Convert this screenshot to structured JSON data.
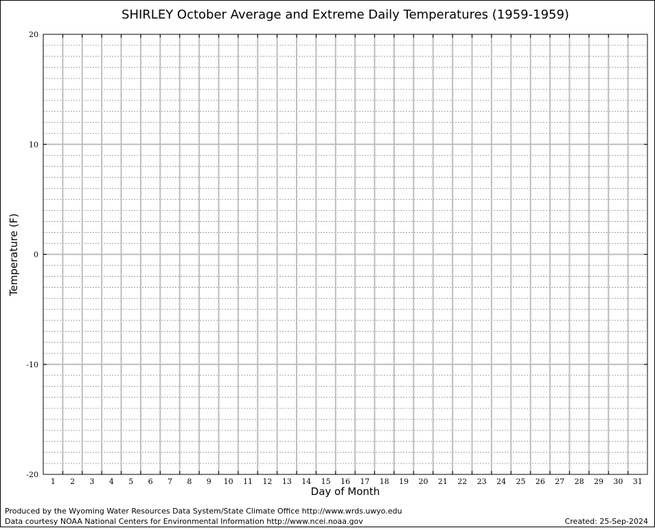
{
  "chart_data": {
    "type": "line",
    "title": "SHIRLEY October Average and Extreme Daily Temperatures (1959-1959)",
    "xlabel": "Day of Month",
    "ylabel": "Temperature (F)",
    "x_ticks": [
      1,
      2,
      3,
      4,
      5,
      6,
      7,
      8,
      9,
      10,
      11,
      12,
      13,
      14,
      15,
      16,
      17,
      18,
      19,
      20,
      21,
      22,
      23,
      24,
      25,
      26,
      27,
      28,
      29,
      30,
      31
    ],
    "y_ticks": [
      20,
      10,
      0,
      -10,
      -20
    ],
    "xlim": [
      0.5,
      31.5
    ],
    "ylim": [
      -20,
      20
    ],
    "y_minor_step": 1,
    "grid": true,
    "series": []
  },
  "footer": {
    "credit_line1": "Produced by the Wyoming Water Resources Data System/State Climate Office http://www.wrds.uwyo.edu",
    "credit_line2": "Data courtesy NOAA National Centers for Environmental Information http://www.ncei.noaa.gov",
    "created": "Created:  25-Sep-2024"
  }
}
